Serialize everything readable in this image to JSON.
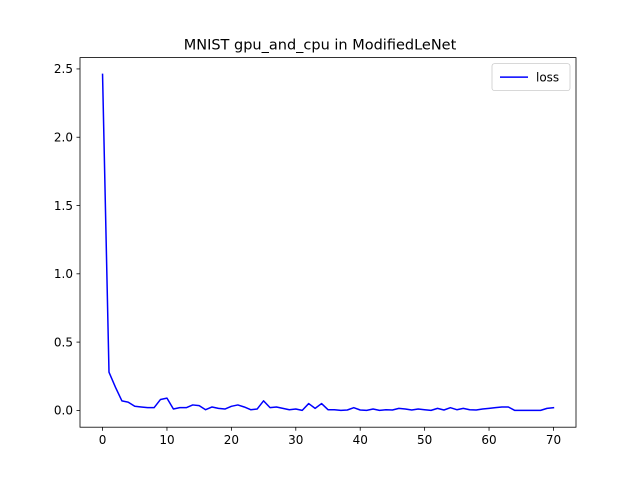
{
  "chart_data": {
    "type": "line",
    "title": "MNIST gpu_and_cpu in ModifiedLeNet",
    "xlabel": "",
    "ylabel": "",
    "xlim": [
      -3.5,
      73.5
    ],
    "ylim": [
      -0.123,
      2.583
    ],
    "xticks": [
      0,
      10,
      20,
      30,
      40,
      50,
      60,
      70
    ],
    "yticks": [
      0.0,
      0.5,
      1.0,
      1.5,
      2.0,
      2.5
    ],
    "ytick_labels": [
      "0.0",
      "0.5",
      "1.0",
      "1.5",
      "2.0",
      "2.5"
    ],
    "grid": false,
    "legend": "top-right",
    "series": [
      {
        "name": "loss",
        "color": "#0000ff",
        "x": [
          0,
          1,
          2,
          3,
          4,
          5,
          6,
          7,
          8,
          9,
          10,
          11,
          12,
          13,
          14,
          15,
          16,
          17,
          18,
          19,
          20,
          21,
          22,
          23,
          24,
          25,
          26,
          27,
          28,
          29,
          30,
          31,
          32,
          33,
          34,
          35,
          36,
          37,
          38,
          39,
          40,
          41,
          42,
          43,
          44,
          45,
          46,
          47,
          48,
          49,
          50,
          51,
          52,
          53,
          54,
          55,
          56,
          57,
          58,
          59,
          60,
          61,
          62,
          63,
          64,
          65,
          66,
          67,
          68,
          69,
          70
        ],
        "values": [
          2.46,
          0.28,
          0.17,
          0.07,
          0.06,
          0.03,
          0.025,
          0.02,
          0.02,
          0.08,
          0.09,
          0.01,
          0.02,
          0.02,
          0.04,
          0.035,
          0.005,
          0.025,
          0.015,
          0.01,
          0.03,
          0.04,
          0.025,
          0.005,
          0.01,
          0.07,
          0.02,
          0.025,
          0.015,
          0.005,
          0.01,
          0.0,
          0.05,
          0.015,
          0.05,
          0.005,
          0.005,
          0.0,
          0.003,
          0.02,
          0.003,
          0.0,
          0.01,
          0.0,
          0.005,
          0.003,
          0.015,
          0.01,
          0.003,
          0.01,
          0.005,
          0.0,
          0.015,
          0.003,
          0.02,
          0.005,
          0.015,
          0.005,
          0.003,
          0.01,
          0.015,
          0.02,
          0.025,
          0.025,
          0.0,
          0.0,
          0.0,
          0.0,
          0.0,
          0.015,
          0.02
        ]
      }
    ]
  }
}
